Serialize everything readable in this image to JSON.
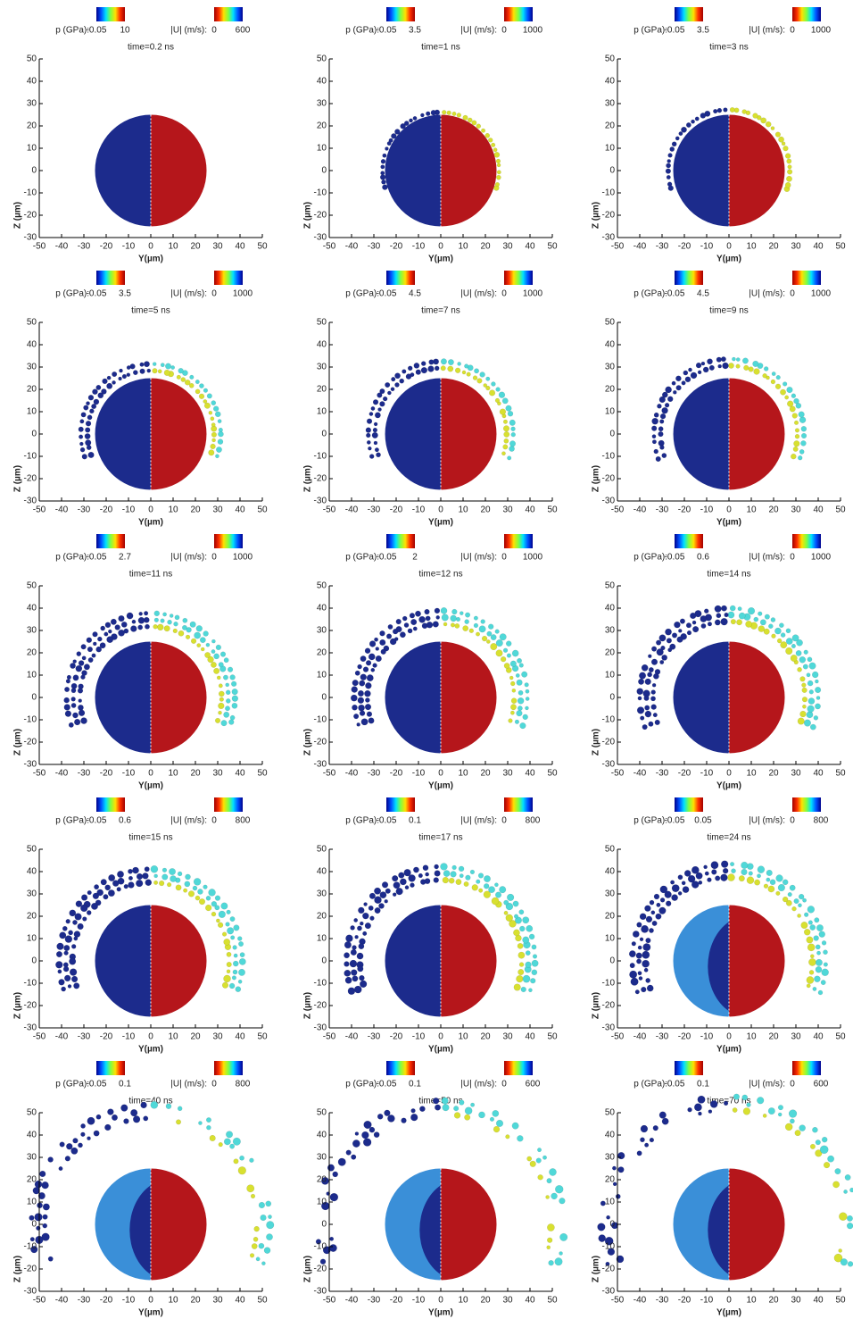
{
  "chart_data": [
    {
      "type": "scatter",
      "title": "time=0.2 ns",
      "xlabel": "Y(µm)",
      "ylabel": "Z (µm)",
      "xlim": [
        -50,
        50
      ],
      "ylim": [
        -30,
        50
      ],
      "xticks": [
        -50,
        -40,
        -30,
        -20,
        -10,
        0,
        10,
        20,
        30,
        40,
        50
      ],
      "yticks": [
        -30,
        -20,
        -10,
        0,
        10,
        20,
        30,
        40,
        50
      ],
      "colorbars": [
        {
          "label": "p (GPa):",
          "min": -0.05,
          "max": 10,
          "colors": [
            "#00008b",
            "#0050ff",
            "#00e0ff",
            "#80ff40",
            "#ffe000",
            "#ff3000",
            "#a00000"
          ]
        },
        {
          "label": "|U| (m/s):",
          "min": 0,
          "max": 600,
          "colors": [
            "#a00000",
            "#ff3000",
            "#ffe000",
            "#80ff40",
            "#00e0ff",
            "#0050ff",
            "#00008b"
          ]
        }
      ]
    },
    {
      "type": "scatter",
      "title": "time=1 ns",
      "xlabel": "Y(µm)",
      "ylabel": "Z (µm)",
      "xlim": [
        -50,
        50
      ],
      "ylim": [
        -30,
        50
      ],
      "xticks": [
        -50,
        -40,
        -30,
        -20,
        -10,
        0,
        10,
        20,
        30,
        40,
        50
      ],
      "yticks": [
        -30,
        -20,
        -10,
        0,
        10,
        20,
        30,
        40,
        50
      ],
      "colorbars": [
        {
          "label": "p (GPa):",
          "min": -0.05,
          "max": 3.5,
          "colors": [
            "#00008b",
            "#0050ff",
            "#00e0ff",
            "#80ff40",
            "#ffe000",
            "#ff3000",
            "#a00000"
          ]
        },
        {
          "label": "|U| (m/s):",
          "min": 0,
          "max": 1000,
          "colors": [
            "#a00000",
            "#ff3000",
            "#ffe000",
            "#80ff40",
            "#00e0ff",
            "#0050ff",
            "#00008b"
          ]
        }
      ]
    },
    {
      "type": "scatter",
      "title": "time=3 ns",
      "xlabel": "Y(µm)",
      "ylabel": "Z (µm)",
      "xlim": [
        -50,
        50
      ],
      "ylim": [
        -30,
        50
      ],
      "xticks": [
        -50,
        -40,
        -30,
        -20,
        -10,
        0,
        10,
        20,
        30,
        40,
        50
      ],
      "yticks": [
        -30,
        -20,
        -10,
        0,
        10,
        20,
        30,
        40,
        50
      ],
      "colorbars": [
        {
          "label": "p (GPa):",
          "min": -0.05,
          "max": 3.5,
          "colors": [
            "#00008b",
            "#0050ff",
            "#00e0ff",
            "#80ff40",
            "#ffe000",
            "#ff3000",
            "#a00000"
          ]
        },
        {
          "label": "|U| (m/s):",
          "min": 0,
          "max": 1000,
          "colors": [
            "#a00000",
            "#ff3000",
            "#ffe000",
            "#80ff40",
            "#00e0ff",
            "#0050ff",
            "#00008b"
          ]
        }
      ]
    },
    {
      "type": "scatter",
      "title": "time=5 ns",
      "xlabel": "Y(µm)",
      "ylabel": "Z (µm)",
      "xlim": [
        -50,
        50
      ],
      "ylim": [
        -30,
        50
      ],
      "xticks": [
        -50,
        -40,
        -30,
        -20,
        -10,
        0,
        10,
        20,
        30,
        40,
        50
      ],
      "yticks": [
        -30,
        -20,
        -10,
        0,
        10,
        20,
        30,
        40,
        50
      ],
      "colorbars": [
        {
          "label": "p (GPa):",
          "min": -0.05,
          "max": 3.5,
          "colors": [
            "#00008b",
            "#0050ff",
            "#00e0ff",
            "#80ff40",
            "#ffe000",
            "#ff3000",
            "#a00000"
          ]
        },
        {
          "label": "|U| (m/s):",
          "min": 0,
          "max": 1000,
          "colors": [
            "#a00000",
            "#ff3000",
            "#ffe000",
            "#80ff40",
            "#00e0ff",
            "#0050ff",
            "#00008b"
          ]
        }
      ]
    },
    {
      "type": "scatter",
      "title": "time=7 ns",
      "xlabel": "Y(µm)",
      "ylabel": "Z (µm)",
      "xlim": [
        -50,
        50
      ],
      "ylim": [
        -30,
        50
      ],
      "xticks": [
        -50,
        -40,
        -30,
        -20,
        -10,
        0,
        10,
        20,
        30,
        40,
        50
      ],
      "yticks": [
        -30,
        -20,
        -10,
        0,
        10,
        20,
        30,
        40,
        50
      ],
      "colorbars": [
        {
          "label": "p (GPa):",
          "min": -0.05,
          "max": 4.5,
          "colors": [
            "#00008b",
            "#0050ff",
            "#00e0ff",
            "#80ff40",
            "#ffe000",
            "#ff3000",
            "#a00000"
          ]
        },
        {
          "label": "|U| (m/s):",
          "min": 0,
          "max": 1000,
          "colors": [
            "#a00000",
            "#ff3000",
            "#ffe000",
            "#80ff40",
            "#00e0ff",
            "#0050ff",
            "#00008b"
          ]
        }
      ]
    },
    {
      "type": "scatter",
      "title": "time=9 ns",
      "xlabel": "Y(µm)",
      "ylabel": "Z (µm)",
      "xlim": [
        -50,
        50
      ],
      "ylim": [
        -30,
        50
      ],
      "xticks": [
        -50,
        -40,
        -30,
        -20,
        -10,
        0,
        10,
        20,
        30,
        40,
        50
      ],
      "yticks": [
        -30,
        -20,
        -10,
        0,
        10,
        20,
        30,
        40,
        50
      ],
      "colorbars": [
        {
          "label": "p (GPa):",
          "min": -0.05,
          "max": 4.5,
          "colors": [
            "#00008b",
            "#0050ff",
            "#00e0ff",
            "#80ff40",
            "#ffe000",
            "#ff3000",
            "#a00000"
          ]
        },
        {
          "label": "|U| (m/s):",
          "min": 0,
          "max": 1000,
          "colors": [
            "#a00000",
            "#ff3000",
            "#ffe000",
            "#80ff40",
            "#00e0ff",
            "#0050ff",
            "#00008b"
          ]
        }
      ]
    },
    {
      "type": "scatter",
      "title": "time=11 ns",
      "xlabel": "Y(µm)",
      "ylabel": "Z (µm)",
      "xlim": [
        -50,
        50
      ],
      "ylim": [
        -30,
        50
      ],
      "xticks": [
        -50,
        -40,
        -30,
        -20,
        -10,
        0,
        10,
        20,
        30,
        40,
        50
      ],
      "yticks": [
        -30,
        -20,
        -10,
        0,
        10,
        20,
        30,
        40,
        50
      ],
      "colorbars": [
        {
          "label": "p (GPa):",
          "min": -0.05,
          "max": 2.7,
          "colors": [
            "#00008b",
            "#0050ff",
            "#00e0ff",
            "#80ff40",
            "#ffe000",
            "#ff3000",
            "#a00000"
          ]
        },
        {
          "label": "|U| (m/s):",
          "min": 0,
          "max": 1000,
          "colors": [
            "#a00000",
            "#ff3000",
            "#ffe000",
            "#80ff40",
            "#00e0ff",
            "#0050ff",
            "#00008b"
          ]
        }
      ]
    },
    {
      "type": "scatter",
      "title": "time=12 ns",
      "xlabel": "Y(µm)",
      "ylabel": "Z (µm)",
      "xlim": [
        -50,
        50
      ],
      "ylim": [
        -30,
        50
      ],
      "xticks": [
        -50,
        -40,
        -30,
        -20,
        -10,
        0,
        10,
        20,
        30,
        40,
        50
      ],
      "yticks": [
        -30,
        -20,
        -10,
        0,
        10,
        20,
        30,
        40,
        50
      ],
      "colorbars": [
        {
          "label": "p (GPa):",
          "min": -0.05,
          "max": 2,
          "colors": [
            "#00008b",
            "#0050ff",
            "#00e0ff",
            "#80ff40",
            "#ffe000",
            "#ff3000",
            "#a00000"
          ]
        },
        {
          "label": "|U| (m/s):",
          "min": 0,
          "max": 1000,
          "colors": [
            "#a00000",
            "#ff3000",
            "#ffe000",
            "#80ff40",
            "#00e0ff",
            "#0050ff",
            "#00008b"
          ]
        }
      ]
    },
    {
      "type": "scatter",
      "title": "time=14 ns",
      "xlabel": "Y(µm)",
      "ylabel": "Z (µm)",
      "xlim": [
        -50,
        50
      ],
      "ylim": [
        -30,
        50
      ],
      "xticks": [
        -50,
        -40,
        -30,
        -20,
        -10,
        0,
        10,
        20,
        30,
        40,
        50
      ],
      "yticks": [
        -30,
        -20,
        -10,
        0,
        10,
        20,
        30,
        40,
        50
      ],
      "colorbars": [
        {
          "label": "p (GPa):",
          "min": -0.05,
          "max": 0.6,
          "colors": [
            "#00008b",
            "#0050ff",
            "#00e0ff",
            "#80ff40",
            "#ffe000",
            "#ff3000",
            "#a00000"
          ]
        },
        {
          "label": "|U| (m/s):",
          "min": 0,
          "max": 1000,
          "colors": [
            "#a00000",
            "#ff3000",
            "#ffe000",
            "#80ff40",
            "#00e0ff",
            "#0050ff",
            "#00008b"
          ]
        }
      ]
    },
    {
      "type": "scatter",
      "title": "time=15 ns",
      "xlabel": "Y(µm)",
      "ylabel": "Z (µm)",
      "xlim": [
        -50,
        50
      ],
      "ylim": [
        -30,
        50
      ],
      "xticks": [
        -50,
        -40,
        -30,
        -20,
        -10,
        0,
        10,
        20,
        30,
        40,
        50
      ],
      "yticks": [
        -30,
        -20,
        -10,
        0,
        10,
        20,
        30,
        40,
        50
      ],
      "colorbars": [
        {
          "label": "p (GPa):",
          "min": -0.05,
          "max": 0.6,
          "colors": [
            "#00008b",
            "#0050ff",
            "#00e0ff",
            "#80ff40",
            "#ffe000",
            "#ff3000",
            "#a00000"
          ]
        },
        {
          "label": "|U| (m/s):",
          "min": 0,
          "max": 800,
          "colors": [
            "#a00000",
            "#ff3000",
            "#ffe000",
            "#80ff40",
            "#00e0ff",
            "#0050ff",
            "#00008b"
          ]
        }
      ]
    },
    {
      "type": "scatter",
      "title": "time=17 ns",
      "xlabel": "Y(µm)",
      "ylabel": "Z (µm)",
      "xlim": [
        -50,
        50
      ],
      "ylim": [
        -30,
        50
      ],
      "xticks": [
        -50,
        -40,
        -30,
        -20,
        -10,
        0,
        10,
        20,
        30,
        40,
        50
      ],
      "yticks": [
        -30,
        -20,
        -10,
        0,
        10,
        20,
        30,
        40,
        50
      ],
      "colorbars": [
        {
          "label": "p (GPa):",
          "min": -0.05,
          "max": 0.1,
          "colors": [
            "#00008b",
            "#0050ff",
            "#00e0ff",
            "#80ff40",
            "#ffe000",
            "#ff3000",
            "#a00000"
          ]
        },
        {
          "label": "|U| (m/s):",
          "min": 0,
          "max": 800,
          "colors": [
            "#a00000",
            "#ff3000",
            "#ffe000",
            "#80ff40",
            "#00e0ff",
            "#0050ff",
            "#00008b"
          ]
        }
      ]
    },
    {
      "type": "scatter",
      "title": "time=24 ns",
      "xlabel": "Y(µm)",
      "ylabel": "Z (µm)",
      "xlim": [
        -50,
        50
      ],
      "ylim": [
        -30,
        50
      ],
      "xticks": [
        -50,
        -40,
        -30,
        -20,
        -10,
        0,
        10,
        20,
        30,
        40,
        50
      ],
      "yticks": [
        -30,
        -20,
        -10,
        0,
        10,
        20,
        30,
        40,
        50
      ],
      "colorbars": [
        {
          "label": "p (GPa):",
          "min": -0.05,
          "max": 0.05,
          "colors": [
            "#00008b",
            "#0050ff",
            "#00e0ff",
            "#80ff40",
            "#ffe000",
            "#ff3000",
            "#a00000"
          ]
        },
        {
          "label": "|U| (m/s):",
          "min": 0,
          "max": 800,
          "colors": [
            "#a00000",
            "#ff3000",
            "#ffe000",
            "#80ff40",
            "#00e0ff",
            "#0050ff",
            "#00008b"
          ]
        }
      ]
    },
    {
      "type": "scatter",
      "title": "time=40 ns",
      "xlabel": "Y(µm)",
      "ylabel": "Z (µm)",
      "xlim": [
        -50,
        50
      ],
      "ylim": [
        -30,
        50
      ],
      "xticks": [
        -50,
        -40,
        -30,
        -20,
        -10,
        0,
        10,
        20,
        30,
        40,
        50
      ],
      "yticks": [
        -30,
        -20,
        -10,
        0,
        10,
        20,
        30,
        40,
        50
      ],
      "colorbars": [
        {
          "label": "p (GPa):",
          "min": -0.05,
          "max": 0.1,
          "colors": [
            "#00008b",
            "#0050ff",
            "#00e0ff",
            "#80ff40",
            "#ffe000",
            "#ff3000",
            "#a00000"
          ]
        },
        {
          "label": "|U| (m/s):",
          "min": 0,
          "max": 800,
          "colors": [
            "#a00000",
            "#ff3000",
            "#ffe000",
            "#80ff40",
            "#00e0ff",
            "#0050ff",
            "#00008b"
          ]
        }
      ]
    },
    {
      "type": "scatter",
      "title": "time=50 ns",
      "xlabel": "Y(µm)",
      "ylabel": "Z (µm)",
      "xlim": [
        -50,
        50
      ],
      "ylim": [
        -30,
        50
      ],
      "xticks": [
        -50,
        -40,
        -30,
        -20,
        -10,
        0,
        10,
        20,
        30,
        40,
        50
      ],
      "yticks": [
        -30,
        -20,
        -10,
        0,
        10,
        20,
        30,
        40,
        50
      ],
      "colorbars": [
        {
          "label": "p (GPa):",
          "min": -0.05,
          "max": 0.1,
          "colors": [
            "#00008b",
            "#0050ff",
            "#00e0ff",
            "#80ff40",
            "#ffe000",
            "#ff3000",
            "#a00000"
          ]
        },
        {
          "label": "|U| (m/s):",
          "min": 0,
          "max": 600,
          "colors": [
            "#a00000",
            "#ff3000",
            "#ffe000",
            "#80ff40",
            "#00e0ff",
            "#0050ff",
            "#00008b"
          ]
        }
      ]
    },
    {
      "type": "scatter",
      "title": "time=70 ns",
      "xlabel": "Y(µm)",
      "ylabel": "Z (µm)",
      "xlim": [
        -50,
        50
      ],
      "ylim": [
        -30,
        50
      ],
      "xticks": [
        -50,
        -40,
        -30,
        -20,
        -10,
        0,
        10,
        20,
        30,
        40,
        50
      ],
      "yticks": [
        -30,
        -20,
        -10,
        0,
        10,
        20,
        30,
        40,
        50
      ],
      "colorbars": [
        {
          "label": "p (GPa):",
          "min": -0.05,
          "max": 0.1,
          "colors": [
            "#00008b",
            "#0050ff",
            "#00e0ff",
            "#80ff40",
            "#ffe000",
            "#ff3000",
            "#a00000"
          ]
        },
        {
          "label": "|U| (m/s):",
          "min": 0,
          "max": 600,
          "colors": [
            "#a00000",
            "#ff3000",
            "#ffe000",
            "#80ff40",
            "#00e0ff",
            "#0050ff",
            "#00008b"
          ]
        }
      ]
    }
  ]
}
